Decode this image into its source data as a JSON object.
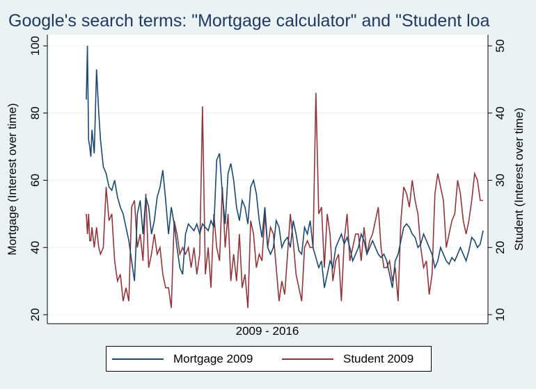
{
  "title": "Google's search terms: \"Mortgage calculator\" and \"Student loa",
  "colors": {
    "background": "#eaf2f3",
    "plot_background": "#ffffff",
    "gridline": "#eaf2f3",
    "mortgage": "#1a476f",
    "student": "#90353b",
    "title": "#1e3a63"
  },
  "chart_data": {
    "type": "line",
    "title": "Google's search terms: \"Mortgage calculator\" and \"Student loa",
    "xlabel": "2009 - 2016",
    "ylabel_left": "Mortgage (Interest over time)",
    "ylabel_right": "Student (Interest over time)",
    "x_range": [
      2009,
      2016
    ],
    "x_ticks_shown": false,
    "ylim_left": [
      20,
      100
    ],
    "ylim_right": [
      10,
      50
    ],
    "yticks_left": [
      20,
      40,
      60,
      80,
      100
    ],
    "yticks_right": [
      10,
      20,
      30,
      40,
      50
    ],
    "grid": true,
    "legend_position": "bottom",
    "series": [
      {
        "name": "Mortgage 2009",
        "axis": "left",
        "color": "#1a476f",
        "x": [
          2009.0,
          2009.02,
          2009.04,
          2009.06,
          2009.08,
          2009.1,
          2009.14,
          2009.18,
          2009.22,
          2009.25,
          2009.3,
          2009.35,
          2009.4,
          2009.45,
          2009.5,
          2009.55,
          2009.6,
          2009.65,
          2009.7,
          2009.75,
          2009.8,
          2009.85,
          2009.9,
          2009.95,
          2010.0,
          2010.05,
          2010.1,
          2010.15,
          2010.2,
          2010.25,
          2010.3,
          2010.35,
          2010.4,
          2010.45,
          2010.5,
          2010.55,
          2010.6,
          2010.65,
          2010.7,
          2010.75,
          2010.8,
          2010.85,
          2010.9,
          2010.95,
          2011.0,
          2011.05,
          2011.1,
          2011.15,
          2011.2,
          2011.25,
          2011.3,
          2011.35,
          2011.4,
          2011.45,
          2011.5,
          2011.55,
          2011.6,
          2011.65,
          2011.7,
          2011.75,
          2011.8,
          2011.85,
          2011.9,
          2011.95,
          2012.0,
          2012.05,
          2012.1,
          2012.15,
          2012.2,
          2012.25,
          2012.3,
          2012.35,
          2012.4,
          2012.45,
          2012.5,
          2012.55,
          2012.6,
          2012.65,
          2012.7,
          2012.75,
          2012.8,
          2012.85,
          2012.9,
          2012.95,
          2013.0,
          2013.05,
          2013.1,
          2013.15,
          2013.2,
          2013.25,
          2013.3,
          2013.35,
          2013.4,
          2013.45,
          2013.5,
          2013.55,
          2013.6,
          2013.65,
          2013.7,
          2013.75,
          2013.8,
          2013.85,
          2013.9,
          2013.95,
          2014.0,
          2014.05,
          2014.1,
          2014.15,
          2014.2,
          2014.25,
          2014.3,
          2014.35,
          2014.4,
          2014.45,
          2014.5,
          2014.55,
          2014.6,
          2014.65,
          2014.7,
          2014.75,
          2014.8,
          2014.85,
          2014.9,
          2014.95,
          2015.0,
          2015.05,
          2015.1,
          2015.15,
          2015.2,
          2015.25,
          2015.3,
          2015.35,
          2015.4,
          2015.45,
          2015.5,
          2015.55,
          2015.6,
          2015.65,
          2015.7,
          2015.75,
          2015.8,
          2015.85,
          2015.9,
          2015.95,
          2016.0
        ],
        "values": [
          84,
          100,
          72,
          70,
          67,
          75,
          68,
          93,
          80,
          72,
          64,
          62,
          58,
          57,
          60,
          55,
          52,
          50,
          46,
          42,
          36,
          30,
          50,
          54,
          44,
          55,
          52,
          44,
          48,
          55,
          58,
          63,
          54,
          44,
          52,
          47,
          40,
          34,
          32,
          44,
          47,
          46,
          45,
          47,
          44,
          47,
          46,
          45,
          48,
          46,
          66,
          68,
          56,
          47,
          62,
          65,
          60,
          52,
          48,
          54,
          52,
          47,
          58,
          60,
          56,
          48,
          43,
          52,
          40,
          38,
          40,
          48,
          46,
          40,
          42,
          43,
          40,
          48,
          44,
          39,
          38,
          46,
          44,
          48,
          40,
          37,
          34,
          36,
          28,
          32,
          36,
          34,
          40,
          42,
          44,
          41,
          43,
          40,
          36,
          38,
          40,
          44,
          42,
          38,
          40,
          42,
          40,
          38,
          37,
          38,
          36,
          32,
          28,
          36,
          38,
          42,
          46,
          47,
          46,
          44,
          43,
          40,
          41,
          44,
          42,
          40,
          38,
          34,
          36,
          40,
          38,
          36,
          35,
          37,
          36,
          38,
          40,
          38,
          36,
          39,
          43,
          42,
          40,
          41,
          45
        ]
      },
      {
        "name": "Student 2009",
        "axis": "right",
        "color": "#90353b",
        "x": [
          2009.0,
          2009.02,
          2009.04,
          2009.06,
          2009.08,
          2009.1,
          2009.14,
          2009.18,
          2009.22,
          2009.25,
          2009.3,
          2009.35,
          2009.4,
          2009.45,
          2009.5,
          2009.55,
          2009.6,
          2009.65,
          2009.7,
          2009.75,
          2009.8,
          2009.85,
          2009.9,
          2009.95,
          2010.0,
          2010.05,
          2010.1,
          2010.15,
          2010.2,
          2010.25,
          2010.3,
          2010.35,
          2010.4,
          2010.45,
          2010.5,
          2010.55,
          2010.6,
          2010.65,
          2010.7,
          2010.75,
          2010.8,
          2010.85,
          2010.9,
          2010.95,
          2011.0,
          2011.05,
          2011.1,
          2011.15,
          2011.2,
          2011.25,
          2011.3,
          2011.35,
          2011.4,
          2011.45,
          2011.5,
          2011.55,
          2011.6,
          2011.65,
          2011.7,
          2011.75,
          2011.8,
          2011.85,
          2011.9,
          2011.95,
          2012.0,
          2012.05,
          2012.1,
          2012.15,
          2012.2,
          2012.25,
          2012.3,
          2012.35,
          2012.4,
          2012.45,
          2012.5,
          2012.55,
          2012.6,
          2012.65,
          2012.7,
          2012.75,
          2012.8,
          2012.85,
          2012.9,
          2012.95,
          2013.0,
          2013.05,
          2013.1,
          2013.15,
          2013.2,
          2013.25,
          2013.3,
          2013.35,
          2013.4,
          2013.45,
          2013.5,
          2013.55,
          2013.6,
          2013.65,
          2013.7,
          2013.75,
          2013.8,
          2013.85,
          2013.9,
          2013.95,
          2014.0,
          2014.05,
          2014.1,
          2014.15,
          2014.2,
          2014.25,
          2014.3,
          2014.35,
          2014.4,
          2014.45,
          2014.5,
          2014.55,
          2014.6,
          2014.65,
          2014.7,
          2014.75,
          2014.8,
          2014.85,
          2014.9,
          2014.95,
          2015.0,
          2015.05,
          2015.1,
          2015.15,
          2015.2,
          2015.25,
          2015.3,
          2015.35,
          2015.4,
          2015.45,
          2015.5,
          2015.55,
          2015.6,
          2015.65,
          2015.7,
          2015.75,
          2015.8,
          2015.85,
          2015.9,
          2015.95,
          2016.0
        ],
        "values": [
          25,
          22,
          25,
          21,
          21,
          23,
          20,
          23,
          20,
          19,
          20,
          29,
          24,
          25,
          18,
          15,
          16,
          12,
          14,
          12,
          26,
          27,
          20,
          22,
          18,
          28,
          17,
          19,
          22,
          19,
          20,
          16,
          14,
          14,
          11,
          24,
          22,
          19,
          20,
          19,
          20,
          17,
          20,
          16,
          19,
          41,
          16,
          20,
          14,
          25,
          20,
          18,
          29,
          20,
          25,
          15,
          19,
          15,
          22,
          14,
          16,
          11,
          24,
          22,
          17,
          19,
          18,
          25,
          20,
          23,
          22,
          17,
          12,
          15,
          13,
          19,
          25,
          21,
          16,
          14,
          12,
          20,
          21,
          20,
          20,
          43,
          25,
          26,
          17,
          25,
          22,
          15,
          18,
          19,
          12,
          21,
          25,
          18,
          20,
          22,
          22,
          18,
          23,
          19,
          21,
          22,
          24,
          26,
          20,
          17,
          17,
          18,
          15,
          17,
          12,
          24,
          29,
          28,
          26,
          30,
          27,
          25,
          20,
          17,
          18,
          13,
          16,
          28,
          31,
          29,
          27,
          20,
          22,
          24,
          25,
          30,
          28,
          24,
          22,
          24,
          27,
          31,
          30,
          27,
          27
        ]
      }
    ]
  },
  "legend": {
    "items": [
      {
        "label": "Mortgage 2009",
        "color": "#1a476f"
      },
      {
        "label": "Student 2009",
        "color": "#90353b"
      }
    ]
  }
}
